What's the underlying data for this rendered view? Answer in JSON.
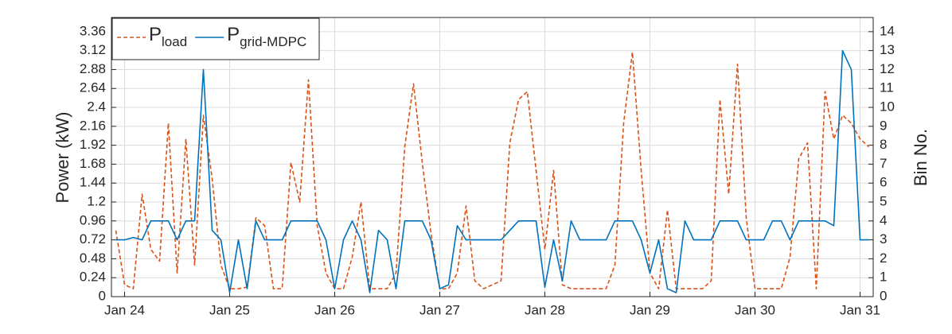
{
  "chart_data": {
    "type": "line",
    "ylabel": "Power (kW)",
    "y2label": "Bin No.",
    "x": [
      -2,
      0,
      2,
      4,
      6,
      8,
      10,
      12,
      14,
      16,
      18,
      20,
      22,
      24,
      26,
      28,
      30,
      32,
      34,
      36,
      38,
      40,
      42,
      44,
      46,
      48,
      50,
      52,
      54,
      56,
      58,
      60,
      62,
      64,
      66,
      68,
      70,
      72,
      74,
      76,
      78,
      80,
      82,
      84,
      86,
      88,
      90,
      92,
      94,
      96,
      98,
      100,
      102,
      104,
      106,
      108,
      110,
      112,
      114,
      116,
      118,
      120,
      122,
      124,
      126,
      128,
      130,
      132,
      134,
      136,
      138,
      140,
      142,
      144,
      146,
      148,
      150,
      152,
      154,
      156,
      158,
      160,
      162,
      164,
      166,
      168,
      170
    ],
    "xlim": [
      -3,
      171
    ],
    "xticks": [
      {
        "value": 0,
        "label": "Jan 24"
      },
      {
        "value": 24,
        "label": "Jan 25"
      },
      {
        "value": 48,
        "label": "Jan 26"
      },
      {
        "value": 72,
        "label": "Jan 27"
      },
      {
        "value": 96,
        "label": "Jan 28"
      },
      {
        "value": 120,
        "label": "Jan 29"
      },
      {
        "value": 144,
        "label": "Jan 30"
      },
      {
        "value": 168,
        "label": "Jan 31"
      }
    ],
    "ylim": [
      0,
      3.54
    ],
    "yticks": [
      0,
      0.24,
      0.48,
      0.72,
      0.96,
      1.2,
      1.44,
      1.68,
      1.92,
      2.16,
      2.4,
      2.64,
      2.88,
      3.12,
      3.36
    ],
    "y2lim": [
      0,
      14.75
    ],
    "y2ticks": [
      0,
      1,
      2,
      3,
      4,
      5,
      6,
      7,
      8,
      9,
      10,
      11,
      12,
      13,
      14
    ],
    "grid": true,
    "legend": "upper left",
    "series": [
      {
        "name": "P",
        "name_subscript": "load",
        "color": "#d95319",
        "dashed": true,
        "values": [
          0.84,
          0.15,
          0.1,
          1.3,
          0.6,
          0.45,
          2.2,
          0.3,
          2.0,
          0.4,
          2.3,
          1.5,
          0.4,
          0.1,
          0.1,
          0.12,
          1.0,
          0.9,
          0.1,
          0.1,
          1.7,
          1.2,
          2.75,
          0.9,
          0.3,
          0.1,
          0.1,
          0.5,
          1.2,
          0.1,
          0.1,
          0.1,
          0.3,
          1.9,
          2.7,
          1.7,
          0.8,
          0.1,
          0.1,
          0.3,
          1.15,
          0.2,
          0.1,
          0.15,
          0.2,
          1.95,
          2.5,
          2.6,
          1.6,
          0.6,
          1.6,
          0.15,
          0.1,
          0.1,
          0.1,
          0.1,
          0.1,
          0.4,
          2.2,
          3.1,
          1.6,
          0.3,
          0.1,
          1.1,
          0.1,
          0.1,
          0.1,
          0.1,
          0.2,
          2.5,
          1.3,
          2.95,
          1.0,
          0.1,
          0.1,
          0.1,
          0.1,
          0.5,
          1.75,
          1.95,
          0.1,
          2.6,
          2.0,
          2.3,
          2.2,
          2.0,
          1.9
        ]
      },
      {
        "name": "P",
        "name_subscript": "grid-MDPC",
        "color": "#0072bd",
        "dashed": false,
        "values": [
          0.72,
          0.72,
          0.75,
          0.72,
          0.96,
          0.96,
          0.96,
          0.72,
          0.96,
          0.96,
          2.88,
          0.84,
          0.72,
          0.05,
          0.72,
          0.1,
          0.96,
          0.72,
          0.72,
          0.72,
          0.96,
          0.96,
          0.96,
          0.96,
          0.72,
          0.1,
          0.72,
          0.96,
          0.72,
          0.05,
          0.84,
          0.72,
          0.1,
          0.96,
          0.96,
          0.96,
          0.72,
          0.1,
          0.15,
          0.9,
          0.72,
          0.72,
          0.72,
          0.72,
          0.72,
          0.84,
          0.96,
          0.96,
          0.96,
          0.12,
          0.72,
          0.2,
          0.96,
          0.72,
          0.72,
          0.72,
          0.72,
          0.96,
          0.96,
          0.96,
          0.72,
          0.3,
          0.72,
          0.1,
          0.05,
          0.96,
          0.72,
          0.72,
          0.72,
          0.96,
          0.96,
          0.96,
          0.72,
          0.72,
          0.72,
          0.96,
          0.96,
          0.72,
          0.96,
          0.96,
          0.96,
          0.96,
          0.9,
          3.12,
          2.88,
          0.72,
          0.72
        ]
      }
    ]
  }
}
